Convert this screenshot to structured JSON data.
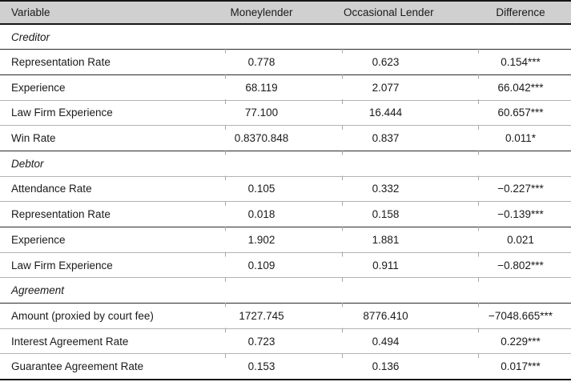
{
  "table": {
    "columns": [
      "Variable",
      "Moneylender",
      "Occasional Lender",
      "Difference"
    ],
    "sections": [
      {
        "label": "Creditor",
        "rows": [
          [
            "Representation Rate",
            "0.778",
            "0.623",
            "0.154***"
          ],
          [
            "Experience",
            "68.119",
            "2.077",
            "66.042***"
          ],
          [
            "Law Firm Experience",
            "77.100",
            "16.444",
            "60.657***"
          ],
          [
            "Win Rate",
            "0.8370.848",
            "0.837",
            "0.011*"
          ]
        ]
      },
      {
        "label": "Debtor",
        "rows": [
          [
            "Attendance Rate",
            "0.105",
            "0.332",
            "−0.227***"
          ],
          [
            "Representation Rate",
            "0.018",
            "0.158",
            "−0.139***"
          ],
          [
            "Experience",
            "1.902",
            "1.881",
            "0.021"
          ],
          [
            "Law Firm Experience",
            "0.109",
            "0.911",
            "−0.802***"
          ]
        ]
      },
      {
        "label": "Agreement",
        "rows": [
          [
            "Amount (proxied by court fee)",
            "1727.745",
            "8776.410",
            "−7048.665***"
          ],
          [
            "Interest Agreement Rate",
            "0.723",
            "0.494",
            "0.229***"
          ],
          [
            "Guarantee Agreement Rate",
            "0.153",
            "0.136",
            "0.017***"
          ]
        ]
      }
    ],
    "colors": {
      "header_bg": "#d0d0d0",
      "rule_dark": "#2a2a2a",
      "rule_light": "#b3b3b3",
      "border": "#161616"
    }
  }
}
